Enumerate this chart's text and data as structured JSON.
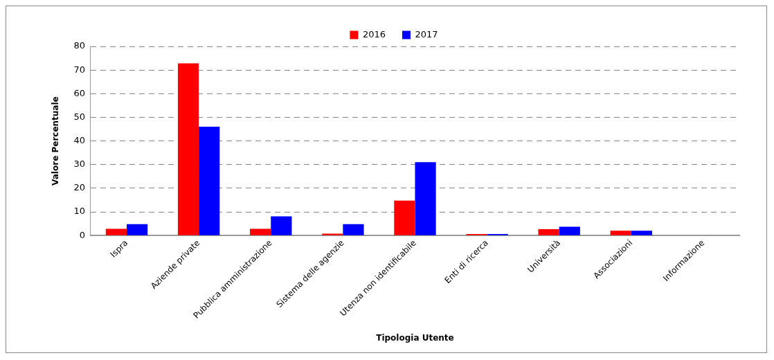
{
  "chart_data": {
    "type": "bar",
    "xlabel": "Tipologia Utente",
    "ylabel": "Valore Percentuale",
    "categories": [
      "Ispra",
      "Aziende private",
      "Pubblica amministrazione",
      "Sistema delle agenzie",
      "Utenza non identificabile",
      "Enti di ricerca",
      "Università",
      "Associazioni",
      "Informazione"
    ],
    "series": [
      {
        "name": "2016",
        "color": "#ff0000",
        "values": [
          2.8,
          72.8,
          2.8,
          0.8,
          14.8,
          0.6,
          2.7,
          2,
          0
        ]
      },
      {
        "name": "2017",
        "color": "#0000ff",
        "values": [
          4.8,
          46,
          8.1,
          4.8,
          31,
          0.6,
          3.7,
          2,
          0
        ]
      }
    ],
    "ylim": [
      0,
      80
    ],
    "yticks": [
      0,
      10,
      20,
      30,
      40,
      50,
      60,
      70,
      80
    ],
    "grid": "y",
    "legend": "top"
  }
}
